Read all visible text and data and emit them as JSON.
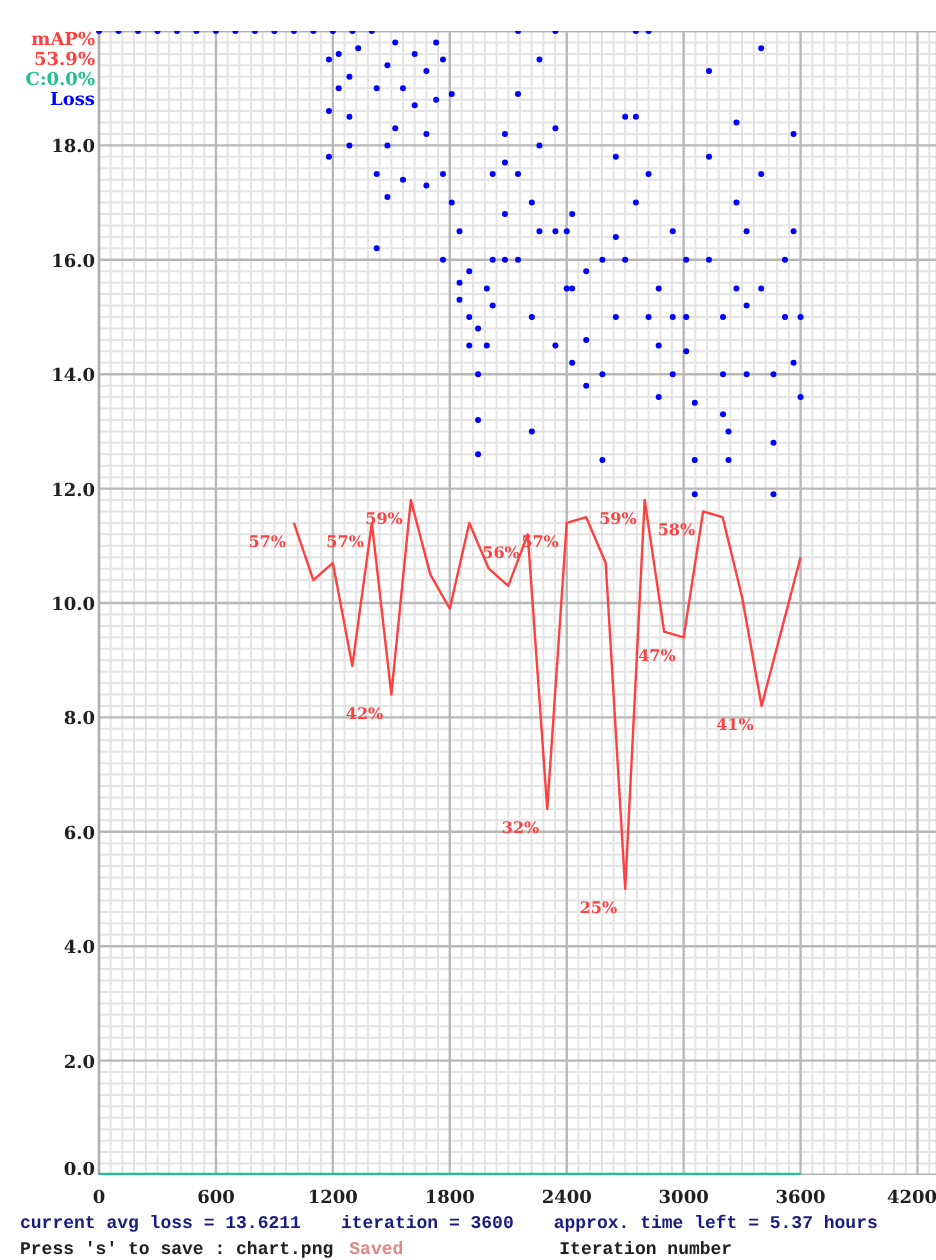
{
  "chart_data": {
    "type": "line",
    "xlabel": "Iteration number",
    "annotations": [
      "53.9%",
      "current avg loss = 13.6211",
      "iteration = 3600",
      "approx. time left = 5.37 hours",
      "Press 's' to save : chart.png",
      "Saved"
    ],
    "xlim": [
      0,
      4300
    ],
    "ylim": [
      0,
      20
    ],
    "xticks": [
      0,
      600,
      1200,
      1800,
      2400,
      3000,
      3600,
      4200
    ],
    "yticks": [
      {
        "value": 0,
        "label": "0.0"
      },
      {
        "value": 2,
        "label": "2.0"
      },
      {
        "value": 4,
        "label": "4.0"
      },
      {
        "value": 6,
        "label": "6.0"
      },
      {
        "value": 8,
        "label": "8.0"
      },
      {
        "value": 10,
        "label": "10.0"
      },
      {
        "value": 12,
        "label": "12.0"
      },
      {
        "value": 14,
        "label": "14.0"
      },
      {
        "value": 16,
        "label": "16.0"
      },
      {
        "value": 18,
        "label": "18.0"
      },
      {
        "value": 20,
        "label": null
      }
    ],
    "y2lim": [
      0,
      100
    ],
    "grid": true,
    "series": [
      {
        "name": "mAP%",
        "axis": "y2",
        "color": "#ff4040",
        "x": [
          1000,
          1100,
          1200,
          1300,
          1400,
          1500,
          1600,
          1700,
          1800,
          1900,
          2000,
          2100,
          2200,
          2300,
          2400,
          2500,
          2600,
          2700,
          2800,
          2900,
          3000,
          3100,
          3200,
          3300,
          3400,
          3500,
          3600
        ],
        "values": [
          57,
          52,
          53.5,
          44.5,
          57,
          42,
          59,
          52.5,
          49.5,
          57,
          53,
          51.5,
          56,
          32,
          57,
          57.5,
          53.5,
          25,
          59,
          47.5,
          47,
          58,
          57.5,
          50.5,
          41,
          47.5,
          54
        ],
        "value_labels": [
          "57%",
          null,
          null,
          null,
          "57%",
          "42%",
          "59%",
          null,
          null,
          null,
          null,
          null,
          "56%",
          "32%",
          "57%",
          null,
          null,
          "25%",
          "59%",
          null,
          "47%",
          "58%",
          null,
          null,
          "41%",
          null,
          null
        ]
      },
      {
        "name": "C:0.0%",
        "color": "#20c090",
        "x": [
          0,
          3600
        ],
        "values": [
          0,
          0
        ]
      },
      {
        "name": "Loss",
        "type": "scatter",
        "color": "#0000ff",
        "marker": "circle",
        "x": [
          0,
          100,
          200,
          300,
          400,
          500,
          600,
          700,
          800,
          900,
          1000,
          1100,
          1200,
          1300,
          1400,
          1180,
          1180,
          1180,
          1230,
          1230,
          1285,
          1285,
          1285,
          1330,
          1425,
          1425,
          1425,
          1480,
          1480,
          1480,
          1520,
          1520,
          1560,
          1560,
          1620,
          1620,
          1680,
          1680,
          1680,
          1730,
          1730,
          1765,
          1765,
          1765,
          1810,
          1810,
          1850,
          1850,
          1850,
          1900,
          1900,
          1900,
          1945,
          1945,
          1945,
          1945,
          1990,
          1990,
          2020,
          2020,
          2020,
          2083,
          2083,
          2083,
          2083,
          2150,
          2150,
          2150,
          2150,
          2221,
          2221,
          2221,
          2260,
          2260,
          2260,
          2342,
          2342,
          2342,
          2342,
          2400,
          2400,
          2428,
          2428,
          2428,
          2500,
          2500,
          2500,
          2583,
          2583,
          2583,
          2652,
          2652,
          2652,
          2700,
          2700,
          2755,
          2755,
          2755,
          2820,
          2820,
          2820,
          2872,
          2872,
          2872,
          2944,
          2944,
          2944,
          3013,
          3013,
          3013,
          3057,
          3057,
          3057,
          3130,
          3130,
          3130,
          3202,
          3202,
          3202,
          3230,
          3230,
          3271,
          3271,
          3271,
          3323,
          3323,
          3323,
          3398,
          3398,
          3398,
          3461,
          3461,
          3461,
          3520,
          3520,
          3564,
          3564,
          3564,
          3600,
          3600
        ],
        "values": [
          20,
          20,
          20,
          20,
          20,
          20,
          20,
          20,
          20,
          20,
          20,
          20,
          20,
          20,
          20,
          19.5,
          18.6,
          17.8,
          19.6,
          19.0,
          19.2,
          18.5,
          18.0,
          19.7,
          19.0,
          17.5,
          16.2,
          19.4,
          18.0,
          17.1,
          19.8,
          18.3,
          19.0,
          17.4,
          19.6,
          18.7,
          19.3,
          18.2,
          17.3,
          19.8,
          18.8,
          19.5,
          17.5,
          16.0,
          18.9,
          17.0,
          16.5,
          15.6,
          15.3,
          15.8,
          15.0,
          14.5,
          14.8,
          14.0,
          13.2,
          12.6,
          15.5,
          14.5,
          17.5,
          16.0,
          15.2,
          18.2,
          17.7,
          16.8,
          16.0,
          20.0,
          18.9,
          17.5,
          16.0,
          17.0,
          15.0,
          13.0,
          19.5,
          18.0,
          16.5,
          20.0,
          18.3,
          16.5,
          14.5,
          16.5,
          15.5,
          16.8,
          15.5,
          14.2,
          15.8,
          14.6,
          13.8,
          16.0,
          14.0,
          12.5,
          17.8,
          16.4,
          15.0,
          18.5,
          16.0,
          20.0,
          18.5,
          17.0,
          20.0,
          17.5,
          15.0,
          15.5,
          14.5,
          13.6,
          16.5,
          15.0,
          14.0,
          16.0,
          15.0,
          14.4,
          13.5,
          12.5,
          11.9,
          19.3,
          17.8,
          16.0,
          15.0,
          14.0,
          13.3,
          13.0,
          12.5,
          18.4,
          17.0,
          15.5,
          16.5,
          15.2,
          14.0,
          19.7,
          17.5,
          15.5,
          14.0,
          12.8,
          11.9,
          16.0,
          15.0,
          18.2,
          16.5,
          14.2,
          15.0,
          13.6
        ]
      }
    ]
  }
}
